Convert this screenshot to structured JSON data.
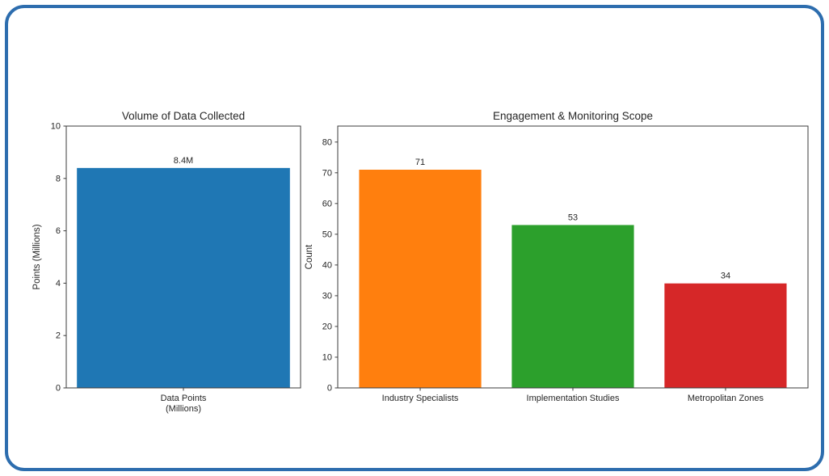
{
  "card": {
    "border_color": "#2d6dae",
    "background_color": "#ffffff"
  },
  "styles": {
    "axis_color": "#3b3b3b",
    "text_color": "#262626"
  },
  "chart_data": [
    {
      "type": "bar",
      "title": "Volume of Data Collected",
      "categories": [
        "Data Points\n(Millions)"
      ],
      "values": [
        8.4
      ],
      "bar_labels": [
        "8.4M"
      ],
      "xlabel": "",
      "ylabel": "Points (Millions)",
      "ylim": [
        0,
        10
      ],
      "yticks": [
        0,
        2,
        4,
        6,
        8,
        10
      ],
      "bar_colors": [
        "#1f77b4"
      ],
      "grid": false,
      "legend": null
    },
    {
      "type": "bar",
      "title": "Engagement & Monitoring Scope",
      "categories": [
        "Industry Specialists",
        "Implementation Studies",
        "Metropolitan Zones"
      ],
      "values": [
        71,
        53,
        34
      ],
      "bar_labels": [
        "71",
        "53",
        "34"
      ],
      "xlabel": "",
      "ylabel": "Count",
      "ylim": [
        0,
        85.2
      ],
      "yticks": [
        0,
        10,
        20,
        30,
        40,
        50,
        60,
        70,
        80
      ],
      "bar_colors": [
        "#ff7f0e",
        "#2ca02c",
        "#d62728"
      ],
      "grid": false,
      "legend": null
    }
  ]
}
